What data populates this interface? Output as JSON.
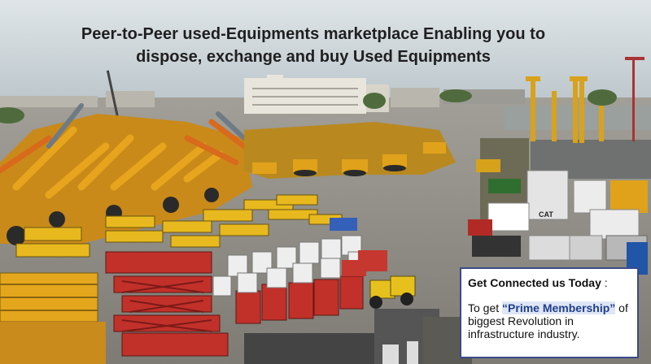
{
  "headline": {
    "line1": "Peer-to-Peer used-Equipments marketplace Enabling you to",
    "line2": "dispose, exchange and buy Used Equipments"
  },
  "cta": {
    "title": "Get Connected us Today",
    "title_suffix": " :",
    "body_prefix": "To get ",
    "highlight": "“Prime Membership”",
    "body_suffix": " of biggest Revolution in infrastructure industry."
  },
  "photo": {
    "equipment_brand_label": "CAT"
  },
  "colors": {
    "sky": "#c9d3d8",
    "ground": "#8f8e87",
    "equipment_yellow": "#e0a21a",
    "equipment_orange": "#d96a1c",
    "lift_red": "#c2302a",
    "box_border": "#3a4a8a",
    "highlight_text": "#1f3f8a"
  }
}
